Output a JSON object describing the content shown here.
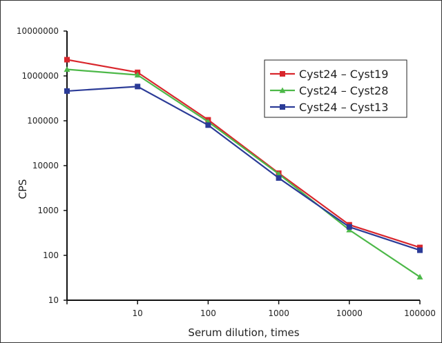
{
  "chart_data": {
    "type": "line",
    "xlabel": "Serum dilution, times",
    "ylabel": "CPS",
    "x_scale": "log",
    "y_scale": "log",
    "xlim": [
      1,
      100000
    ],
    "ylim": [
      10,
      10000000
    ],
    "x_ticks": [
      {
        "value": 1,
        "label": ""
      },
      {
        "value": 10,
        "label": "10"
      },
      {
        "value": 100,
        "label": "100"
      },
      {
        "value": 1000,
        "label": "1000"
      },
      {
        "value": 10000,
        "label": "10000"
      },
      {
        "value": 100000,
        "label": "100000"
      }
    ],
    "y_ticks": [
      {
        "value": 10,
        "label": "10"
      },
      {
        "value": 100,
        "label": "100"
      },
      {
        "value": 1000,
        "label": "1000"
      },
      {
        "value": 10000,
        "label": "10000"
      },
      {
        "value": 100000,
        "label": "100000"
      },
      {
        "value": 1000000,
        "label": "1000000"
      },
      {
        "value": 10000000,
        "label": "10000000"
      }
    ],
    "grid": false,
    "legend_position": "top-right",
    "x": [
      1,
      10,
      100,
      1000,
      10000,
      100000
    ],
    "series": [
      {
        "name": "Cyst24 – Cyst19",
        "color": "#d9262c",
        "marker": "square",
        "values": [
          2300000,
          1200000,
          105000,
          6800,
          480,
          150
        ]
      },
      {
        "name": "Cyst24 – Cyst28",
        "color": "#4cb848",
        "marker": "triangle",
        "values": [
          1400000,
          1050000,
          95000,
          6500,
          370,
          33
        ]
      },
      {
        "name": "Cyst24 – Cyst13",
        "color": "#2b3b97",
        "marker": "square",
        "values": [
          460000,
          580000,
          80000,
          5300,
          430,
          130
        ]
      }
    ]
  }
}
